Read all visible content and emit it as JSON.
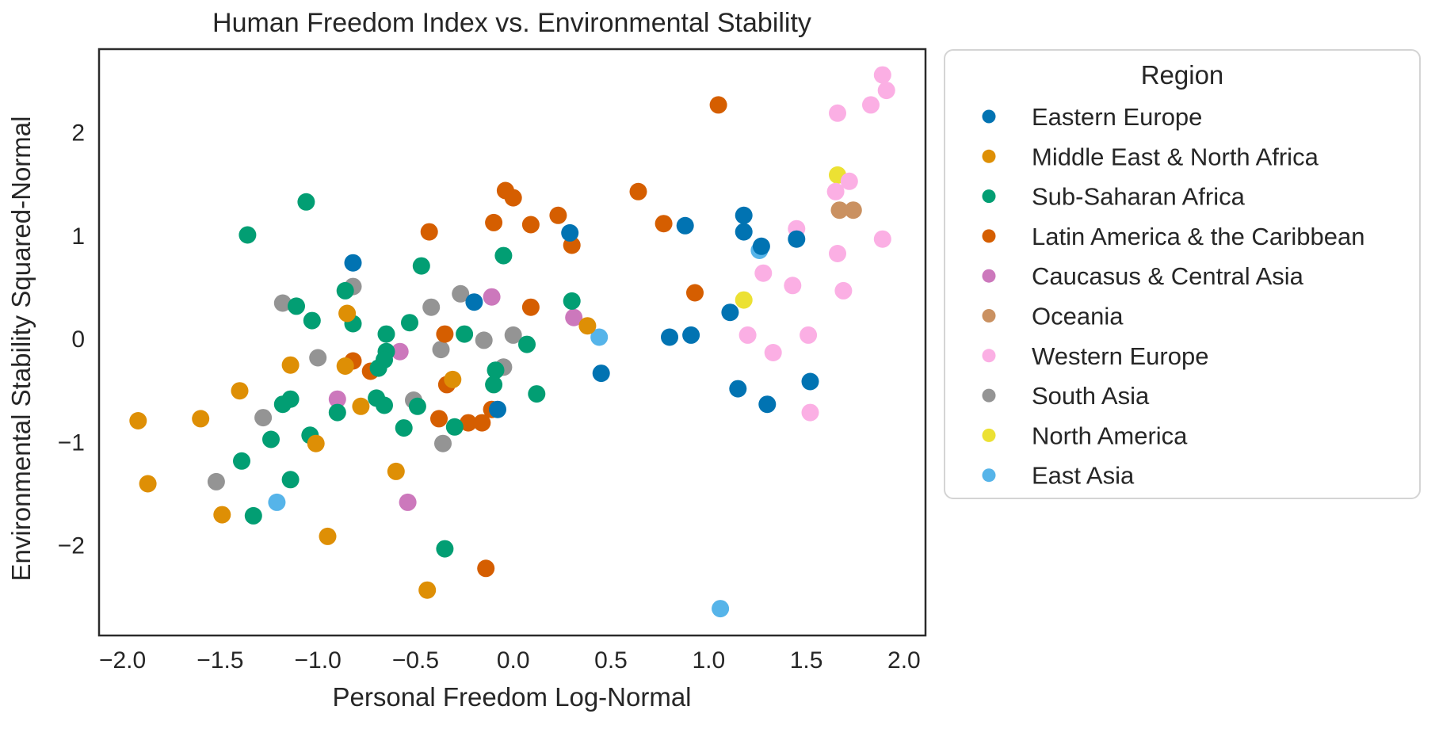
{
  "chart_data": {
    "type": "scatter",
    "title": "Human Freedom Index vs. Environmental Stability",
    "xlabel": "Personal Freedom Log-Normal",
    "ylabel": "Environmental Stability Squared-Normal",
    "xlim": [
      -2.12,
      2.11
    ],
    "ylim": [
      -2.87,
      2.81
    ],
    "grid": false,
    "x_ticks": {
      "values": [
        -2.0,
        -1.5,
        -1.0,
        -0.5,
        0.0,
        0.5,
        1.0,
        1.5,
        2.0
      ],
      "labels": [
        "−2.0",
        "−1.5",
        "−1.0",
        "−0.5",
        "0.0",
        "0.5",
        "1.0",
        "1.5",
        "2.0"
      ]
    },
    "y_ticks": {
      "values": [
        2,
        1,
        0,
        -1,
        -2
      ],
      "labels": [
        "2",
        "1",
        "0",
        "−1",
        "−2"
      ]
    },
    "legend": {
      "title": "Region",
      "position": "right-outside"
    },
    "draw_order": "reverse-of-legend",
    "series": [
      {
        "name": "Eastern Europe",
        "color": "#0173b2",
        "points": [
          [
            -0.82,
            0.74
          ],
          [
            0.29,
            1.03
          ],
          [
            -0.2,
            0.36
          ],
          [
            1.18,
            1.2
          ],
          [
            0.88,
            1.1
          ],
          [
            1.18,
            1.04
          ],
          [
            1.45,
            0.97
          ],
          [
            1.27,
            0.9
          ],
          [
            1.11,
            0.26
          ],
          [
            0.8,
            0.02
          ],
          [
            0.91,
            0.04
          ],
          [
            0.45,
            -0.33
          ],
          [
            -0.08,
            -0.68
          ],
          [
            1.52,
            -0.41
          ],
          [
            1.15,
            -0.48
          ],
          [
            1.3,
            -0.63
          ]
        ]
      },
      {
        "name": "Middle East & North Africa",
        "color": "#de8f05",
        "points": [
          [
            -0.85,
            0.25
          ],
          [
            0.38,
            0.13
          ],
          [
            -1.14,
            -0.25
          ],
          [
            -0.86,
            -0.26
          ],
          [
            -1.4,
            -0.5
          ],
          [
            -0.78,
            -0.65
          ],
          [
            -1.92,
            -0.79
          ],
          [
            -1.6,
            -0.77
          ],
          [
            -1.01,
            -1.01
          ],
          [
            -1.87,
            -1.4
          ],
          [
            -1.49,
            -1.7
          ],
          [
            -0.95,
            -1.91
          ],
          [
            -0.31,
            -0.39
          ],
          [
            -0.6,
            -1.28
          ],
          [
            -0.44,
            -2.43
          ]
        ]
      },
      {
        "name": "Sub-Saharan Africa",
        "color": "#029e73",
        "points": [
          [
            -1.06,
            1.33
          ],
          [
            -1.36,
            1.01
          ],
          [
            -0.86,
            0.47
          ],
          [
            -1.11,
            0.32
          ],
          [
            -1.03,
            0.18
          ],
          [
            -0.82,
            0.15
          ],
          [
            -0.05,
            0.81
          ],
          [
            -0.47,
            0.71
          ],
          [
            0.3,
            0.37
          ],
          [
            -0.53,
            0.16
          ],
          [
            -0.65,
            0.05
          ],
          [
            -0.25,
            0.05
          ],
          [
            0.07,
            -0.05
          ],
          [
            -0.65,
            -0.12
          ],
          [
            -0.66,
            -0.2
          ],
          [
            -0.69,
            -0.28
          ],
          [
            -0.09,
            -0.3
          ],
          [
            -1.14,
            -0.58
          ],
          [
            -1.18,
            -0.63
          ],
          [
            -0.9,
            -0.71
          ],
          [
            -0.7,
            -0.57
          ],
          [
            -0.49,
            -0.65
          ],
          [
            -0.66,
            -0.64
          ],
          [
            0.12,
            -0.53
          ],
          [
            -0.1,
            -0.44
          ],
          [
            -1.24,
            -0.97
          ],
          [
            -1.04,
            -0.93
          ],
          [
            -0.3,
            -0.85
          ],
          [
            -0.56,
            -0.86
          ],
          [
            -1.39,
            -1.18
          ],
          [
            -1.14,
            -1.36
          ],
          [
            -1.33,
            -1.71
          ],
          [
            -0.35,
            -2.03
          ]
        ]
      },
      {
        "name": "Latin America & the Caribbean",
        "color": "#d55e00",
        "points": [
          [
            1.05,
            2.27
          ],
          [
            -0.04,
            1.44
          ],
          [
            0.0,
            1.37
          ],
          [
            0.64,
            1.43
          ],
          [
            0.23,
            1.2
          ],
          [
            -0.1,
            1.13
          ],
          [
            0.09,
            1.11
          ],
          [
            -0.43,
            1.04
          ],
          [
            0.3,
            0.91
          ],
          [
            0.77,
            1.12
          ],
          [
            0.93,
            0.45
          ],
          [
            0.09,
            0.31
          ],
          [
            -0.35,
            0.05
          ],
          [
            -0.82,
            -0.21
          ],
          [
            -0.73,
            -0.31
          ],
          [
            -0.34,
            -0.44
          ],
          [
            -0.11,
            -0.68
          ],
          [
            -0.38,
            -0.77
          ],
          [
            -0.23,
            -0.81
          ],
          [
            -0.16,
            -0.81
          ],
          [
            -0.14,
            -2.22
          ]
        ]
      },
      {
        "name": "Caucasus & Central Asia",
        "color": "#cc78bc",
        "points": [
          [
            -0.11,
            0.41
          ],
          [
            0.31,
            0.21
          ],
          [
            -0.58,
            -0.12
          ],
          [
            -0.9,
            -0.58
          ],
          [
            -0.54,
            -1.58
          ]
        ]
      },
      {
        "name": "Oceania",
        "color": "#ca9161",
        "points": [
          [
            1.67,
            1.25
          ],
          [
            1.74,
            1.25
          ]
        ]
      },
      {
        "name": "Western Europe",
        "color": "#fbafe4",
        "points": [
          [
            1.89,
            2.56
          ],
          [
            1.91,
            2.41
          ],
          [
            1.83,
            2.27
          ],
          [
            1.66,
            2.19
          ],
          [
            1.72,
            1.53
          ],
          [
            1.65,
            1.43
          ],
          [
            1.45,
            1.07
          ],
          [
            1.89,
            0.97
          ],
          [
            1.66,
            0.83
          ],
          [
            1.28,
            0.64
          ],
          [
            1.43,
            0.52
          ],
          [
            1.69,
            0.47
          ],
          [
            1.2,
            0.04
          ],
          [
            1.51,
            0.04
          ],
          [
            1.33,
            -0.13
          ],
          [
            1.52,
            -0.71
          ]
        ]
      },
      {
        "name": "South Asia",
        "color": "#949494",
        "points": [
          [
            -0.82,
            0.51
          ],
          [
            -1.18,
            0.35
          ],
          [
            -0.27,
            0.44
          ],
          [
            -0.42,
            0.31
          ],
          [
            -0.15,
            -0.01
          ],
          [
            0.0,
            0.04
          ],
          [
            -1.0,
            -0.18
          ],
          [
            -0.37,
            -0.1
          ],
          [
            -0.05,
            -0.27
          ],
          [
            -0.51,
            -0.59
          ],
          [
            -0.36,
            -1.01
          ],
          [
            -1.28,
            -0.76
          ],
          [
            -1.52,
            -1.38
          ]
        ]
      },
      {
        "name": "North America",
        "color": "#ece133",
        "points": [
          [
            1.66,
            1.59
          ],
          [
            1.18,
            0.38
          ]
        ]
      },
      {
        "name": "East Asia",
        "color": "#56b4e9",
        "points": [
          [
            0.44,
            0.02
          ],
          [
            1.26,
            0.86
          ],
          [
            -1.21,
            -1.58
          ],
          [
            1.06,
            -2.61
          ]
        ]
      }
    ]
  },
  "style": {
    "background": "#ffffff",
    "text_color": "#262626",
    "spine_color": "#2b2b2b",
    "legend_border_color": "#d4d4d4"
  }
}
